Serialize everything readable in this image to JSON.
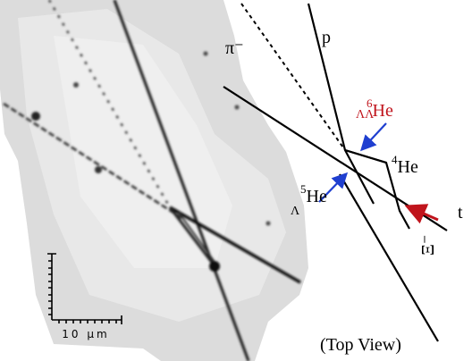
{
  "micrograph": {
    "scale_label": "10 μm"
  },
  "diagram": {
    "pion": "π⁻",
    "proton": "p",
    "triton": "t",
    "xi": "Ξ⁻",
    "double_hyper": {
      "mass": "6",
      "symbol": "He",
      "sub": "ΛΛ"
    },
    "he4": {
      "mass": "4",
      "symbol": "He"
    },
    "hyper": {
      "mass": "5",
      "symbol": "He",
      "sub": "Λ"
    },
    "caption": "(Top View)"
  }
}
